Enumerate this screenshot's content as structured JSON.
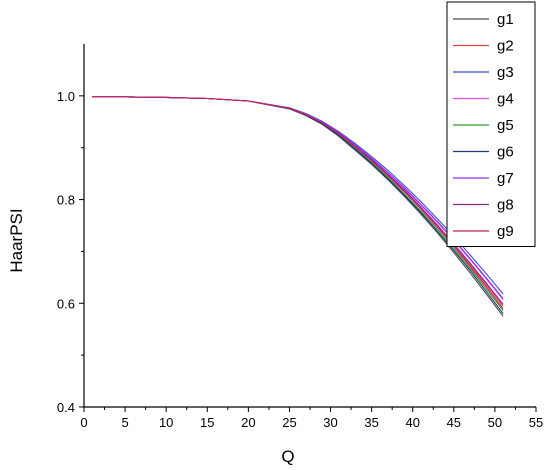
{
  "chart_data": {
    "type": "line",
    "title": "",
    "xlabel": "Q",
    "ylabel": "HaarPSI",
    "xlim": [
      0,
      55
    ],
    "ylim": [
      0.4,
      1.1
    ],
    "xticks": [
      0,
      5,
      10,
      15,
      20,
      25,
      30,
      35,
      40,
      45,
      50,
      55
    ],
    "yticks": [
      0.4,
      0.6,
      0.8,
      1.0
    ],
    "ytick_labels": [
      "0.4",
      "0.6",
      "0.8",
      "1.0"
    ],
    "grid": false,
    "legend_position": "top-right",
    "x": [
      1,
      5,
      10,
      15,
      20,
      25,
      27,
      29,
      31,
      33,
      35,
      37,
      39,
      41,
      43,
      45,
      47,
      49,
      51
    ],
    "series": [
      {
        "name": "g1",
        "color": "#4d4d4d",
        "values": [
          0.998,
          0.998,
          0.997,
          0.995,
          0.99,
          0.975,
          0.962,
          0.945,
          0.922,
          0.895,
          0.868,
          0.838,
          0.806,
          0.772,
          0.736,
          0.698,
          0.658,
          0.617,
          0.575
        ]
      },
      {
        "name": "g2",
        "color": "#e8473f",
        "values": [
          0.998,
          0.998,
          0.997,
          0.995,
          0.99,
          0.976,
          0.964,
          0.948,
          0.927,
          0.902,
          0.876,
          0.847,
          0.816,
          0.783,
          0.748,
          0.712,
          0.674,
          0.635,
          0.595
        ]
      },
      {
        "name": "g3",
        "color": "#3b4fd8",
        "values": [
          0.998,
          0.998,
          0.997,
          0.995,
          0.99,
          0.977,
          0.966,
          0.951,
          0.931,
          0.908,
          0.883,
          0.856,
          0.827,
          0.796,
          0.763,
          0.729,
          0.693,
          0.656,
          0.618
        ]
      },
      {
        "name": "g4",
        "color": "#e04fe0",
        "values": [
          0.998,
          0.998,
          0.997,
          0.995,
          0.99,
          0.976,
          0.965,
          0.949,
          0.929,
          0.905,
          0.879,
          0.851,
          0.821,
          0.789,
          0.756,
          0.721,
          0.684,
          0.646,
          0.607
        ]
      },
      {
        "name": "g5",
        "color": "#2ca02c",
        "values": [
          0.998,
          0.998,
          0.997,
          0.995,
          0.99,
          0.975,
          0.963,
          0.946,
          0.925,
          0.899,
          0.872,
          0.843,
          0.811,
          0.778,
          0.743,
          0.706,
          0.667,
          0.627,
          0.586
        ]
      },
      {
        "name": "g6",
        "color": "#1f3a7a",
        "values": [
          0.998,
          0.998,
          0.997,
          0.995,
          0.99,
          0.975,
          0.963,
          0.946,
          0.924,
          0.898,
          0.87,
          0.84,
          0.808,
          0.775,
          0.739,
          0.702,
          0.663,
          0.622,
          0.58
        ]
      },
      {
        "name": "g7",
        "color": "#9b30ff",
        "values": [
          0.998,
          0.998,
          0.997,
          0.995,
          0.99,
          0.976,
          0.965,
          0.95,
          0.93,
          0.906,
          0.88,
          0.852,
          0.823,
          0.791,
          0.758,
          0.723,
          0.686,
          0.648,
          0.609
        ]
      },
      {
        "name": "g8",
        "color": "#8b2a8b",
        "values": [
          0.998,
          0.998,
          0.997,
          0.995,
          0.99,
          0.976,
          0.964,
          0.948,
          0.928,
          0.903,
          0.877,
          0.848,
          0.818,
          0.785,
          0.751,
          0.715,
          0.677,
          0.638,
          0.598
        ]
      },
      {
        "name": "g9",
        "color": "#c4245a",
        "values": [
          0.998,
          0.998,
          0.997,
          0.995,
          0.99,
          0.976,
          0.964,
          0.948,
          0.927,
          0.902,
          0.875,
          0.846,
          0.815,
          0.782,
          0.747,
          0.71,
          0.671,
          0.631,
          0.59
        ]
      }
    ]
  }
}
